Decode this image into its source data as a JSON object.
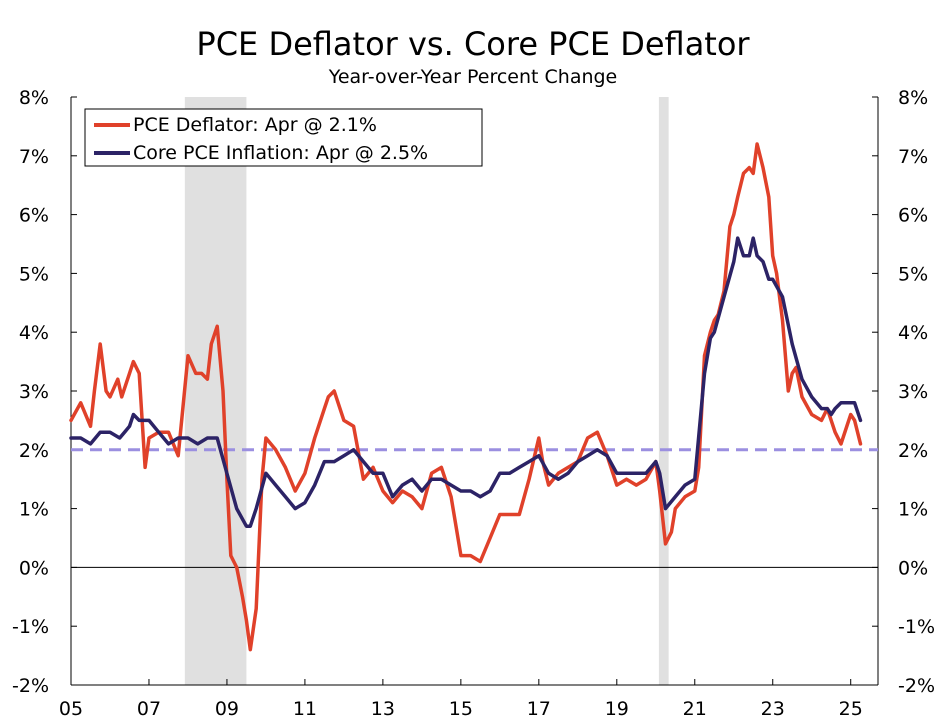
{
  "chart_data": {
    "type": "line",
    "title": "PCE Deflator vs. Core PCE Deflator",
    "subtitle": "Year-over-Year Percent Change",
    "xlabel": "",
    "ylabel": "",
    "xlim": [
      2005,
      2025.7
    ],
    "ylim": [
      -2,
      8
    ],
    "y_ticks": [
      -2,
      -1,
      0,
      1,
      2,
      3,
      4,
      5,
      6,
      7,
      8
    ],
    "y_tick_labels": [
      "-2%",
      "-1%",
      "0%",
      "1%",
      "2%",
      "3%",
      "4%",
      "5%",
      "6%",
      "7%",
      "8%"
    ],
    "x_ticks": [
      2005,
      2007,
      2009,
      2011,
      2013,
      2015,
      2017,
      2019,
      2021,
      2023,
      2025
    ],
    "x_tick_labels": [
      "05",
      "07",
      "09",
      "11",
      "13",
      "15",
      "17",
      "19",
      "21",
      "23",
      "25"
    ],
    "reference_line": {
      "y": 2,
      "style": "dashed",
      "color": "#9b8fe0"
    },
    "zero_line": 0,
    "recessions": [
      [
        2007.92,
        2009.5
      ],
      [
        2020.08,
        2020.33
      ]
    ],
    "legend_position": "top-left",
    "series": [
      {
        "name": "PCE Deflator: Apr @ 2.1%",
        "color": "#e0412a",
        "x": [
          2005.0,
          2005.25,
          2005.5,
          2005.6,
          2005.75,
          2005.9,
          2006.0,
          2006.2,
          2006.3,
          2006.5,
          2006.6,
          2006.75,
          2006.9,
          2007.0,
          2007.25,
          2007.5,
          2007.75,
          2008.0,
          2008.2,
          2008.35,
          2008.5,
          2008.6,
          2008.75,
          2008.9,
          2009.0,
          2009.1,
          2009.25,
          2009.4,
          2009.5,
          2009.6,
          2009.75,
          2009.9,
          2010.0,
          2010.25,
          2010.5,
          2010.75,
          2011.0,
          2011.25,
          2011.5,
          2011.6,
          2011.75,
          2012.0,
          2012.25,
          2012.5,
          2012.75,
          2013.0,
          2013.25,
          2013.5,
          2013.75,
          2014.0,
          2014.25,
          2014.5,
          2014.75,
          2015.0,
          2015.1,
          2015.25,
          2015.5,
          2015.75,
          2016.0,
          2016.25,
          2016.5,
          2016.75,
          2017.0,
          2017.1,
          2017.25,
          2017.5,
          2017.75,
          2018.0,
          2018.25,
          2018.5,
          2018.75,
          2019.0,
          2019.25,
          2019.5,
          2019.75,
          2020.0,
          2020.1,
          2020.25,
          2020.4,
          2020.5,
          2020.75,
          2021.0,
          2021.1,
          2021.25,
          2021.4,
          2021.5,
          2021.6,
          2021.75,
          2021.9,
          2022.0,
          2022.1,
          2022.25,
          2022.4,
          2022.5,
          2022.6,
          2022.75,
          2022.9,
          2023.0,
          2023.1,
          2023.25,
          2023.4,
          2023.5,
          2023.6,
          2023.75,
          2024.0,
          2024.25,
          2024.4,
          2024.5,
          2024.6,
          2024.75,
          2024.9,
          2025.0,
          2025.1,
          2025.25
        ],
        "values": [
          2.5,
          2.8,
          2.4,
          3.0,
          3.8,
          3.0,
          2.9,
          3.2,
          2.9,
          3.3,
          3.5,
          3.3,
          1.7,
          2.2,
          2.3,
          2.3,
          1.9,
          3.6,
          3.3,
          3.3,
          3.2,
          3.8,
          4.1,
          3.0,
          1.5,
          0.2,
          0.0,
          -0.5,
          -0.9,
          -1.4,
          -0.7,
          1.5,
          2.2,
          2.0,
          1.7,
          1.3,
          1.6,
          2.2,
          2.7,
          2.9,
          3.0,
          2.5,
          2.4,
          1.5,
          1.7,
          1.3,
          1.1,
          1.3,
          1.2,
          1.0,
          1.6,
          1.7,
          1.2,
          0.2,
          0.2,
          0.2,
          0.1,
          0.5,
          0.9,
          0.9,
          0.9,
          1.5,
          2.2,
          1.8,
          1.4,
          1.6,
          1.7,
          1.8,
          2.2,
          2.3,
          1.9,
          1.4,
          1.5,
          1.4,
          1.5,
          1.8,
          1.3,
          0.4,
          0.6,
          1.0,
          1.2,
          1.3,
          1.7,
          3.6,
          4.0,
          4.2,
          4.3,
          4.7,
          5.8,
          6.0,
          6.3,
          6.7,
          6.8,
          6.7,
          7.2,
          6.8,
          6.3,
          5.3,
          5.0,
          4.2,
          3.0,
          3.3,
          3.4,
          2.9,
          2.6,
          2.5,
          2.7,
          2.5,
          2.3,
          2.1,
          2.4,
          2.6,
          2.5,
          2.1
        ]
      },
      {
        "name": "Core PCE Inflation: Apr @ 2.5%",
        "color": "#2c2366",
        "x": [
          2005.0,
          2005.25,
          2005.5,
          2005.75,
          2006.0,
          2006.25,
          2006.5,
          2006.6,
          2006.75,
          2007.0,
          2007.25,
          2007.5,
          2007.75,
          2008.0,
          2008.25,
          2008.5,
          2008.75,
          2009.0,
          2009.25,
          2009.5,
          2009.6,
          2009.75,
          2010.0,
          2010.25,
          2010.5,
          2010.75,
          2011.0,
          2011.25,
          2011.5,
          2011.75,
          2012.0,
          2012.25,
          2012.5,
          2012.75,
          2013.0,
          2013.25,
          2013.5,
          2013.75,
          2014.0,
          2014.25,
          2014.5,
          2014.75,
          2015.0,
          2015.25,
          2015.5,
          2015.75,
          2016.0,
          2016.25,
          2016.5,
          2016.75,
          2017.0,
          2017.25,
          2017.5,
          2017.75,
          2018.0,
          2018.25,
          2018.5,
          2018.75,
          2019.0,
          2019.25,
          2019.5,
          2019.75,
          2020.0,
          2020.1,
          2020.25,
          2020.5,
          2020.75,
          2021.0,
          2021.25,
          2021.4,
          2021.5,
          2021.75,
          2022.0,
          2022.1,
          2022.25,
          2022.4,
          2022.5,
          2022.6,
          2022.75,
          2022.9,
          2023.0,
          2023.25,
          2023.5,
          2023.75,
          2024.0,
          2024.25,
          2024.4,
          2024.5,
          2024.6,
          2024.75,
          2024.9,
          2025.0,
          2025.1,
          2025.25
        ],
        "values": [
          2.2,
          2.2,
          2.1,
          2.3,
          2.3,
          2.2,
          2.4,
          2.6,
          2.5,
          2.5,
          2.3,
          2.1,
          2.2,
          2.2,
          2.1,
          2.2,
          2.2,
          1.6,
          1.0,
          0.7,
          0.7,
          1.0,
          1.6,
          1.4,
          1.2,
          1.0,
          1.1,
          1.4,
          1.8,
          1.8,
          1.9,
          2.0,
          1.8,
          1.6,
          1.6,
          1.2,
          1.4,
          1.5,
          1.3,
          1.5,
          1.5,
          1.4,
          1.3,
          1.3,
          1.2,
          1.3,
          1.6,
          1.6,
          1.7,
          1.8,
          1.9,
          1.6,
          1.5,
          1.6,
          1.8,
          1.9,
          2.0,
          1.9,
          1.6,
          1.6,
          1.6,
          1.6,
          1.8,
          1.6,
          1.0,
          1.2,
          1.4,
          1.5,
          3.3,
          3.9,
          4.0,
          4.6,
          5.2,
          5.6,
          5.3,
          5.3,
          5.6,
          5.3,
          5.2,
          4.9,
          4.9,
          4.6,
          3.8,
          3.2,
          2.9,
          2.7,
          2.7,
          2.6,
          2.7,
          2.8,
          2.8,
          2.8,
          2.8,
          2.5
        ]
      }
    ]
  }
}
